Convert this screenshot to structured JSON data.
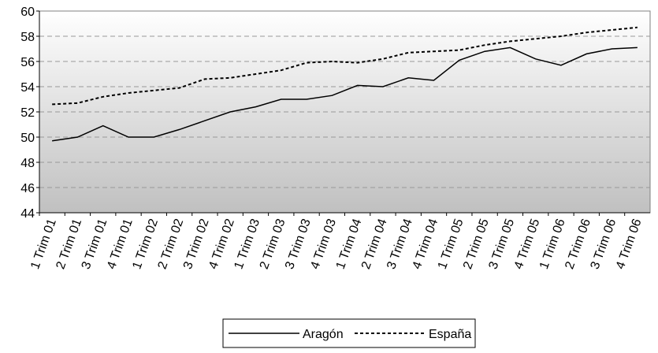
{
  "chart_data": {
    "type": "line",
    "categories": [
      "1 Trim 01",
      "2 Trim 01",
      "3 Trim 01",
      "4 Trim 01",
      "1 Trim 02",
      "2 Trim 02",
      "3 Trim 02",
      "4 Trim 02",
      "1 Trim 03",
      "2 Trim 03",
      "3 Trim 03",
      "4 Trim 03",
      "1 Trim 04",
      "2 Trim 04",
      "3 Trim 04",
      "4 Trim 04",
      "1 Trim 05",
      "2 Trim 05",
      "3 Trim 05",
      "4 Trim 05",
      "1 Trim 06",
      "2 Trim 06",
      "3 Trim 06",
      "4 Trim 06"
    ],
    "series": [
      {
        "name": "Aragón",
        "color": "#000000",
        "dash": "solid",
        "values": [
          49.7,
          50.0,
          50.9,
          50.0,
          50.0,
          50.6,
          51.3,
          52.0,
          52.4,
          53.0,
          53.0,
          53.3,
          54.1,
          54.0,
          54.7,
          54.5,
          56.1,
          56.8,
          57.1,
          56.2,
          55.7,
          56.6,
          57.0,
          57.1
        ]
      },
      {
        "name": "España",
        "color": "#000000",
        "dash": "dashed",
        "values": [
          52.6,
          52.7,
          53.2,
          53.5,
          53.7,
          53.9,
          54.6,
          54.7,
          55.0,
          55.3,
          55.9,
          56.0,
          55.9,
          56.2,
          56.7,
          56.8,
          56.9,
          57.3,
          57.6,
          57.8,
          58.0,
          58.3,
          58.5,
          58.7
        ]
      }
    ],
    "ylim": [
      44,
      60
    ],
    "yticks": [
      44,
      46,
      48,
      50,
      52,
      54,
      56,
      58,
      60
    ],
    "grid": true,
    "legend": "bottom"
  }
}
